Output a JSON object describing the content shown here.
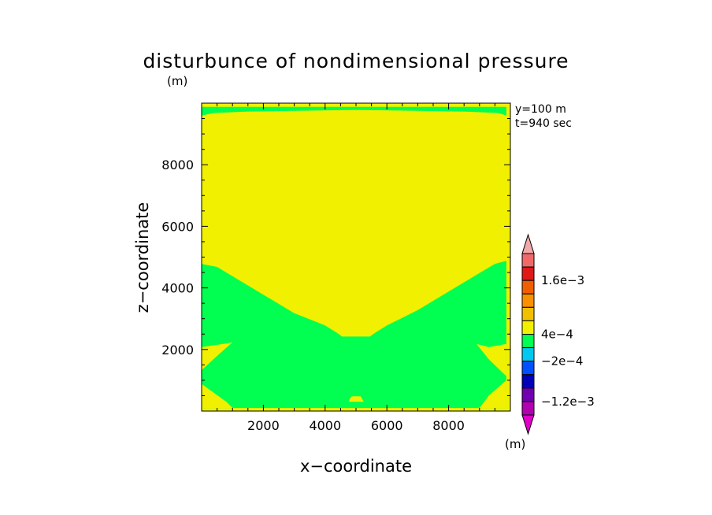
{
  "chart_data": {
    "type": "contour",
    "title": "disturbunce of nondimensional pressure",
    "title_unit": "(m)",
    "xlabel": "x−coordinate",
    "ylabel": "z−coordinate",
    "xlim": [
      0,
      10000
    ],
    "ylim": [
      0,
      10000
    ],
    "x_ticks": [
      2000,
      4000,
      6000,
      8000
    ],
    "y_ticks": [
      2000,
      4000,
      6000,
      8000
    ],
    "x_tick_labels": [
      "2000",
      "4000",
      "6000",
      "8000"
    ],
    "y_tick_labels": [
      "2000",
      "4000",
      "6000",
      "8000"
    ],
    "annotations": [
      "y=100  m",
      "t=940  sec"
    ],
    "colorbar": {
      "unit": "(m)",
      "labels": [
        {
          "text": "1.6e−3",
          "level": 0.0016
        },
        {
          "text": "4e−4",
          "level": 0.0004
        },
        {
          "text": "−2e−4",
          "level": -0.0002
        },
        {
          "text": "−1.2e−3",
          "level": -0.0012
        }
      ],
      "colors_top_to_bottom": [
        "#f0a8a8",
        "#f06868",
        "#e01818",
        "#f06000",
        "#f89000",
        "#f0c000",
        "#f0f000",
        "#00ff50",
        "#00c8f0",
        "#0050ff",
        "#0000b8",
        "#7000b0",
        "#b000b0",
        "#e000c8"
      ]
    },
    "regions": [
      {
        "name": "green lower region",
        "value_range": "-2e-4 to 0",
        "color": "#00ff50",
        "polygon": [
          [
            0,
            4780
          ],
          [
            500,
            4680
          ],
          [
            1000,
            4380
          ],
          [
            2000,
            3780
          ],
          [
            3000,
            3180
          ],
          [
            4000,
            2780
          ],
          [
            4400,
            2530
          ],
          [
            4550,
            2420
          ],
          [
            5450,
            2420
          ],
          [
            5600,
            2530
          ],
          [
            6000,
            2780
          ],
          [
            7000,
            3280
          ],
          [
            8000,
            3880
          ],
          [
            9000,
            4480
          ],
          [
            9500,
            4780
          ],
          [
            9870,
            4880
          ],
          [
            9870,
            100
          ],
          [
            0,
            100
          ]
        ]
      },
      {
        "name": "green top band",
        "value_range": "-2e-4 to 0",
        "color": "#00ff50",
        "polygon": [
          [
            0,
            9880
          ],
          [
            9870,
            9880
          ],
          [
            9870,
            9600
          ],
          [
            9600,
            9680
          ],
          [
            8500,
            9730
          ],
          [
            5000,
            9780
          ],
          [
            1500,
            9730
          ],
          [
            400,
            9680
          ],
          [
            0,
            9600
          ]
        ]
      },
      {
        "name": "yellow blob center",
        "value_range": "0 to 4e-4",
        "color": "#f0f000",
        "polygon": [
          [
            4300,
            3030
          ],
          [
            4600,
            3230
          ],
          [
            5000,
            3330
          ],
          [
            5400,
            3230
          ],
          [
            5700,
            3030
          ],
          [
            5000,
            2980
          ]
        ]
      },
      {
        "name": "yellow left mid",
        "value_range": "0 to 4e-4",
        "color": "#f0f000",
        "polygon": [
          [
            0,
            2080
          ],
          [
            700,
            2180
          ],
          [
            1000,
            2230
          ],
          [
            600,
            1880
          ],
          [
            0,
            1330
          ]
        ]
      },
      {
        "name": "yellow left bottom",
        "value_range": "0 to 4e-4",
        "color": "#f0f000",
        "polygon": [
          [
            0,
            880
          ],
          [
            800,
            300
          ],
          [
            1000,
            100
          ],
          [
            0,
            100
          ]
        ]
      },
      {
        "name": "yellow right mid",
        "value_range": "0 to 4e-4",
        "color": "#f0f000",
        "polygon": [
          [
            9870,
            2180
          ],
          [
            9300,
            2080
          ],
          [
            8900,
            2180
          ],
          [
            9300,
            1680
          ],
          [
            9870,
            1130
          ]
        ]
      },
      {
        "name": "yellow right bottom",
        "value_range": "0 to 4e-4",
        "color": "#f0f000",
        "polygon": [
          [
            9870,
            1000
          ],
          [
            9300,
            500
          ],
          [
            9000,
            100
          ],
          [
            9870,
            100
          ]
        ]
      },
      {
        "name": "yellow bottom center",
        "value_range": "0 to 4e-4",
        "color": "#f0f000",
        "polygon": [
          [
            4750,
            300
          ],
          [
            4850,
            480
          ],
          [
            5150,
            480
          ],
          [
            5250,
            300
          ]
        ]
      }
    ]
  }
}
